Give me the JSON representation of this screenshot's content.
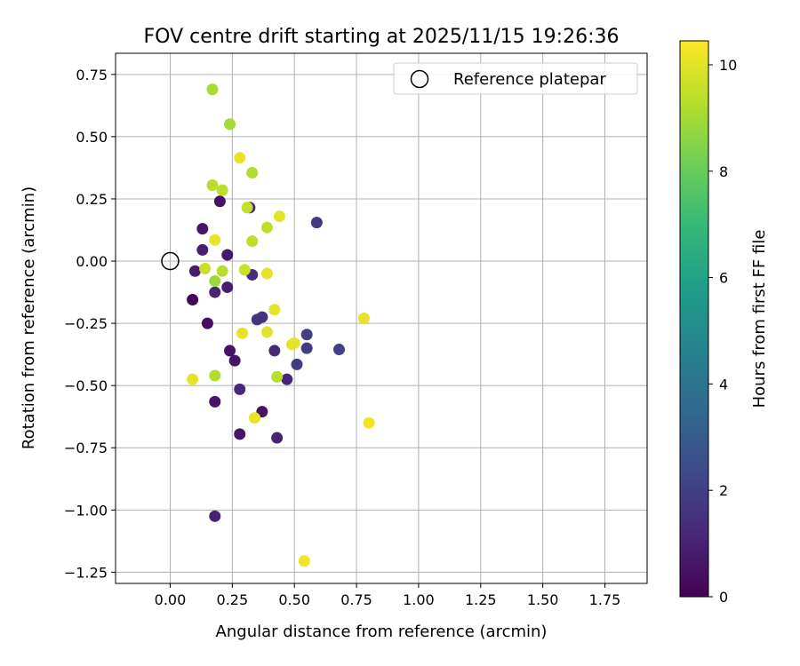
{
  "chart_data": {
    "type": "scatter",
    "title": "FOV centre drift starting at 2025/11/15 19:26:36",
    "xlabel": "Angular distance from reference (arcmin)",
    "ylabel": "Rotation from reference (arcmin)",
    "xlim": [
      -0.22,
      1.92
    ],
    "ylim": [
      -1.295,
      0.835
    ],
    "grid": true,
    "x_ticks": [
      0.0,
      0.25,
      0.5,
      0.75,
      1.0,
      1.25,
      1.5,
      1.75
    ],
    "x_tick_labels": [
      "0.00",
      "0.25",
      "0.50",
      "0.75",
      "1.00",
      "1.25",
      "1.50",
      "1.75"
    ],
    "y_ticks": [
      0.75,
      0.5,
      0.25,
      0.0,
      -0.25,
      -0.5,
      -0.75,
      -1.0,
      -1.25
    ],
    "y_tick_labels": [
      "0.75",
      "0.50",
      "0.25",
      "0.00",
      "−0.25",
      "−0.50",
      "−0.75",
      "−1.00",
      "−1.25"
    ],
    "legend": {
      "position": "top-right",
      "entries": [
        "Reference platepar"
      ]
    },
    "reference": {
      "x": 0.0,
      "y": 0.0,
      "label": "Reference platepar"
    },
    "colorbar": {
      "label": "Hours from first FF file",
      "range": [
        0,
        10.45
      ],
      "ticks": [
        0,
        2,
        4,
        6,
        8,
        10
      ],
      "tick_labels": [
        "0",
        "2",
        "4",
        "6",
        "8",
        "10"
      ],
      "colormap": "viridis"
    },
    "points": [
      {
        "x": 0.09,
        "y": -0.155,
        "c": 0.1
      },
      {
        "x": 0.13,
        "y": 0.13,
        "c": 0.6
      },
      {
        "x": 0.13,
        "y": 0.045,
        "c": 0.9
      },
      {
        "x": 0.1,
        "y": -0.04,
        "c": 0.8
      },
      {
        "x": 0.15,
        "y": -0.25,
        "c": 0.4
      },
      {
        "x": 0.18,
        "y": -0.125,
        "c": 1.1
      },
      {
        "x": 0.18,
        "y": -0.565,
        "c": 0.6
      },
      {
        "x": 0.18,
        "y": -1.025,
        "c": 1.0
      },
      {
        "x": 0.2,
        "y": 0.24,
        "c": 0.5
      },
      {
        "x": 0.23,
        "y": 0.025,
        "c": 0.7
      },
      {
        "x": 0.23,
        "y": -0.105,
        "c": 0.9
      },
      {
        "x": 0.24,
        "y": -0.36,
        "c": 0.5
      },
      {
        "x": 0.26,
        "y": -0.4,
        "c": 0.6
      },
      {
        "x": 0.28,
        "y": -0.515,
        "c": 1.2
      },
      {
        "x": 0.28,
        "y": -0.695,
        "c": 0.6
      },
      {
        "x": 0.32,
        "y": 0.215,
        "c": 1.1
      },
      {
        "x": 0.33,
        "y": -0.055,
        "c": 1.3
      },
      {
        "x": 0.35,
        "y": -0.235,
        "c": 1.6
      },
      {
        "x": 0.37,
        "y": -0.225,
        "c": 1.5
      },
      {
        "x": 0.37,
        "y": -0.605,
        "c": 0.5
      },
      {
        "x": 0.42,
        "y": -0.36,
        "c": 1.2
      },
      {
        "x": 0.43,
        "y": -0.71,
        "c": 1.0
      },
      {
        "x": 0.47,
        "y": -0.475,
        "c": 1.1
      },
      {
        "x": 0.51,
        "y": -0.415,
        "c": 1.9
      },
      {
        "x": 0.55,
        "y": -0.295,
        "c": 2.0
      },
      {
        "x": 0.55,
        "y": -0.35,
        "c": 1.9
      },
      {
        "x": 0.59,
        "y": 0.155,
        "c": 1.8
      },
      {
        "x": 0.68,
        "y": -0.355,
        "c": 2.0
      },
      {
        "x": 0.17,
        "y": 0.69,
        "c": 9.1
      },
      {
        "x": 0.24,
        "y": 0.55,
        "c": 9.0
      },
      {
        "x": 0.28,
        "y": 0.415,
        "c": 10.1
      },
      {
        "x": 0.33,
        "y": 0.355,
        "c": 9.2
      },
      {
        "x": 0.17,
        "y": 0.305,
        "c": 9.3
      },
      {
        "x": 0.21,
        "y": 0.285,
        "c": 9.4
      },
      {
        "x": 0.31,
        "y": 0.215,
        "c": 9.5
      },
      {
        "x": 0.44,
        "y": 0.18,
        "c": 10.0
      },
      {
        "x": 0.39,
        "y": 0.135,
        "c": 9.4
      },
      {
        "x": 0.18,
        "y": 0.085,
        "c": 10.1
      },
      {
        "x": 0.33,
        "y": 0.08,
        "c": 9.4
      },
      {
        "x": 0.14,
        "y": -0.03,
        "c": 9.6
      },
      {
        "x": 0.21,
        "y": -0.04,
        "c": 9.3
      },
      {
        "x": 0.3,
        "y": -0.035,
        "c": 9.6
      },
      {
        "x": 0.39,
        "y": -0.05,
        "c": 10.1
      },
      {
        "x": 0.18,
        "y": -0.08,
        "c": 8.9
      },
      {
        "x": 0.42,
        "y": -0.195,
        "c": 10.0
      },
      {
        "x": 0.78,
        "y": -0.23,
        "c": 10.1
      },
      {
        "x": 0.29,
        "y": -0.29,
        "c": 10.1
      },
      {
        "x": 0.39,
        "y": -0.285,
        "c": 10.0
      },
      {
        "x": 0.49,
        "y": -0.335,
        "c": 10.1
      },
      {
        "x": 0.5,
        "y": -0.33,
        "c": 10.0
      },
      {
        "x": 0.09,
        "y": -0.475,
        "c": 10.1
      },
      {
        "x": 0.18,
        "y": -0.46,
        "c": 9.2
      },
      {
        "x": 0.43,
        "y": -0.465,
        "c": 9.3
      },
      {
        "x": 0.34,
        "y": -0.63,
        "c": 10.1
      },
      {
        "x": 0.8,
        "y": -0.65,
        "c": 10.2
      },
      {
        "x": 0.54,
        "y": -1.205,
        "c": 10.2
      }
    ]
  }
}
